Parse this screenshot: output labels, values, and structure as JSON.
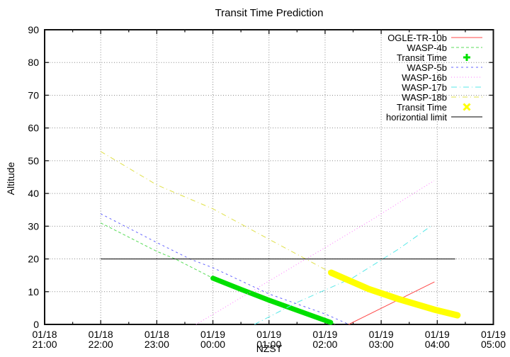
{
  "chart_data": {
    "type": "line",
    "title": "Transit Time Prediction",
    "xlabel": "NZST",
    "ylabel": "Altitude",
    "grid": true,
    "legend_position": "top-right-inside",
    "x_axis": {
      "unit": "hours after 21:00 NZST",
      "range": [
        0,
        8
      ],
      "minor_tick_step": 0.5,
      "major_ticks": [
        {
          "h": 0,
          "date": "01/18",
          "time": "21:00"
        },
        {
          "h": 1,
          "date": "01/18",
          "time": "22:00"
        },
        {
          "h": 2,
          "date": "01/18",
          "time": "23:00"
        },
        {
          "h": 3,
          "date": "01/19",
          "time": "00:00"
        },
        {
          "h": 4,
          "date": "01/19",
          "time": "01:00"
        },
        {
          "h": 5,
          "date": "01/19",
          "time": "02:00"
        },
        {
          "h": 6,
          "date": "01/19",
          "time": "03:00"
        },
        {
          "h": 7,
          "date": "01/19",
          "time": "04:00"
        },
        {
          "h": 8,
          "date": "01/19",
          "time": "05:00"
        }
      ]
    },
    "y_axis": {
      "range": [
        0,
        90
      ],
      "ticks": [
        0,
        10,
        20,
        30,
        40,
        50,
        60,
        70,
        80,
        90
      ]
    },
    "series": [
      {
        "name": "OGLE-TR-10b",
        "label": "OGLE-TR-10b",
        "swatch": "line",
        "color": "#ff4848",
        "dash": "",
        "width": 1,
        "points": [
          [
            5.42,
            0
          ],
          [
            6.95,
            13.0
          ]
        ]
      },
      {
        "name": "WASP-4b",
        "label": "WASP-4b",
        "swatch": "line",
        "color": "#58dc58",
        "dash": "4,3",
        "width": 1,
        "points": [
          [
            1,
            31.0
          ],
          [
            2,
            22.3
          ],
          [
            2.33,
            20.0
          ],
          [
            3,
            14.1
          ],
          [
            4,
            7.4
          ],
          [
            4.5,
            4.3
          ],
          [
            5.2,
            0
          ]
        ]
      },
      {
        "name": "transit-time-wasp-4b",
        "label": "Transit Time",
        "swatch": "plus",
        "color": "#00e000",
        "dash": "",
        "width": 7,
        "points": [
          [
            3,
            14.1
          ],
          [
            3.5,
            10.7
          ],
          [
            4,
            7.4
          ],
          [
            4.5,
            4.3
          ],
          [
            5.1,
            0.6
          ]
        ]
      },
      {
        "name": "WASP-5b",
        "label": "WASP-5b",
        "swatch": "line",
        "color": "#6464ff",
        "dash": "3,4",
        "width": 1,
        "points": [
          [
            1,
            33.8
          ],
          [
            2,
            25.0
          ],
          [
            2.59,
            20.0
          ],
          [
            3,
            17.3
          ],
          [
            4,
            9.3
          ],
          [
            5,
            3.2
          ],
          [
            5.4,
            0.2
          ]
        ]
      },
      {
        "name": "WASP-16b",
        "label": "WASP-16b",
        "swatch": "line",
        "color": "#ff78ff",
        "dash": "1,3",
        "width": 1,
        "points": [
          [
            2.7,
            0
          ],
          [
            4.61,
            19.5
          ],
          [
            5.8,
            31.6
          ],
          [
            6.94,
            43.9
          ]
        ]
      },
      {
        "name": "WASP-17b",
        "label": "WASP-17b",
        "swatch": "line",
        "color": "#58e8e8",
        "dash": "8,4,1,4",
        "width": 1,
        "points": [
          [
            3.74,
            0
          ],
          [
            4.5,
            6.7
          ],
          [
            5.5,
            14.3
          ],
          [
            6.3,
            22.9
          ],
          [
            6.91,
            30.3
          ]
        ]
      },
      {
        "name": "WASP-18b",
        "label": "WASP-18b",
        "swatch": "line",
        "color": "#e0e048",
        "dash": "7,4,1,4",
        "width": 1,
        "points": [
          [
            1,
            52.8
          ],
          [
            2,
            42.6
          ],
          [
            3,
            35.3
          ],
          [
            4,
            26.0
          ],
          [
            5.11,
            15.8
          ]
        ]
      },
      {
        "name": "transit-time-wasp-18b",
        "label": "Transit Time",
        "swatch": "x",
        "color": "#ffff00",
        "dash": "",
        "width": 9,
        "points": [
          [
            5.11,
            15.8
          ],
          [
            5.78,
            10.8
          ],
          [
            6.3,
            7.8
          ],
          [
            6.95,
            4.5
          ],
          [
            7.36,
            2.8
          ]
        ]
      },
      {
        "name": "horizontial-limit",
        "label": "horizontial limit",
        "swatch": "line",
        "color": "#000000",
        "dash": "",
        "width": 1,
        "points": [
          [
            1,
            20
          ],
          [
            7.32,
            20
          ]
        ]
      }
    ]
  }
}
